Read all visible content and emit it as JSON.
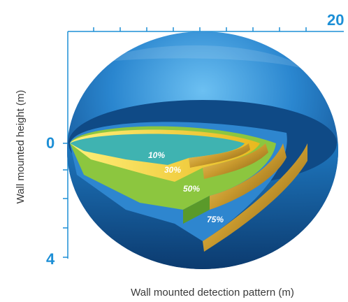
{
  "axes": {
    "x_max": "20",
    "y_top": "0",
    "y_bottom": "4",
    "x_label": "Wall mounted detection pattern (m)",
    "y_label": "Wall mounted height (m)"
  },
  "zones": [
    {
      "label": "10%",
      "color": "#3fb3b1"
    },
    {
      "label": "30%",
      "color": "#f4d23a"
    },
    {
      "label": "50%",
      "color": "#8cc63f"
    },
    {
      "label": "75%",
      "color": "#2f7fc9"
    }
  ],
  "colors": {
    "accent": "#1d8fd6",
    "dome_dark": "#0b3f7a",
    "dome_light": "#5fb6ee",
    "gold": "#c99a2e"
  }
}
